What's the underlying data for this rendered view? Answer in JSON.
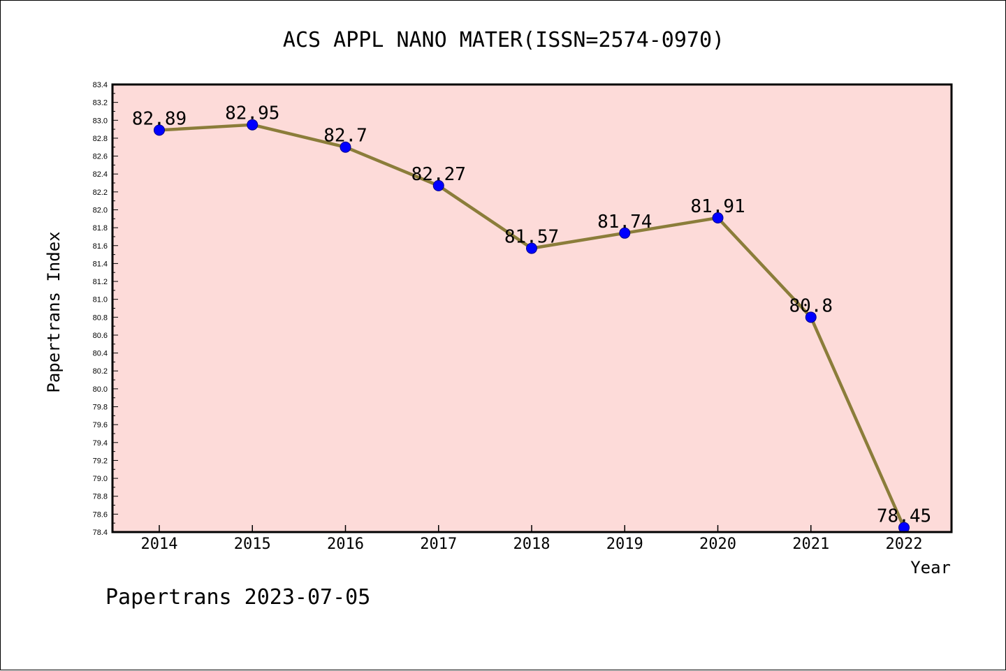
{
  "chart_data": {
    "type": "line",
    "title": "ACS APPL NANO MATER(ISSN=2574-0970)",
    "xlabel": "Year",
    "ylabel": "Papertrans Index",
    "categories": [
      "2014",
      "2015",
      "2016",
      "2017",
      "2018",
      "2019",
      "2020",
      "2021",
      "2022"
    ],
    "series": [
      {
        "name": "Papertrans Index",
        "values": [
          82.89,
          82.95,
          82.7,
          82.27,
          81.57,
          81.74,
          81.91,
          80.8,
          78.45
        ],
        "labels": [
          "82.89",
          "82.95",
          "82.7",
          "82.27",
          "81.57",
          "81.74",
          "81.91",
          "80.8",
          "78.45"
        ]
      }
    ],
    "ylim": [
      78.4,
      83.4
    ],
    "yticks": [
      "78.4",
      "78.6",
      "78.8",
      "79.0",
      "79.2",
      "79.4",
      "79.6",
      "79.8",
      "80.0",
      "80.2",
      "80.4",
      "80.6",
      "80.8",
      "81.0",
      "81.2",
      "81.4",
      "81.6",
      "81.8",
      "82.0",
      "82.2",
      "82.4",
      "82.6",
      "82.8",
      "83.0",
      "83.2",
      "83.4"
    ],
    "grid": false,
    "colors": {
      "plot_background": "#fddbd9",
      "line": "#8b7d3a",
      "marker": "#0000ff"
    }
  },
  "footer": {
    "text": "Papertrans 2023-07-05"
  }
}
